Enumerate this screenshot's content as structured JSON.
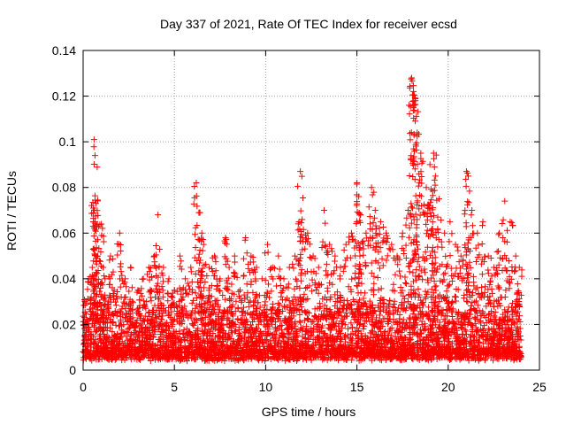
{
  "chart_data": {
    "type": "scatter",
    "title": "Day 337 of 2021, Rate Of TEC Index for receiver ecsd",
    "xlabel": "GPS time / hours",
    "ylabel": "ROTI / TECUs",
    "xlim": [
      0,
      25
    ],
    "ylim": [
      0,
      0.14
    ],
    "xticks": [
      0,
      5,
      10,
      15,
      20,
      25
    ],
    "xtick_labels": [
      "0",
      "5",
      "10",
      "15",
      "20",
      "25"
    ],
    "yticks": [
      0,
      0.02,
      0.04,
      0.06,
      0.08,
      0.1,
      0.12,
      0.14
    ],
    "ytick_labels": [
      "0",
      "0.02",
      "0.04",
      "0.06",
      "0.08",
      "0.1",
      "0.12",
      "0.14"
    ],
    "grid": true,
    "marker": "+",
    "marker_color": "#ff0000",
    "series": [
      {
        "x": [
          0.1,
          0.3,
          0.5,
          0.6,
          0.65,
          0.7,
          0.8,
          1.0,
          1.1,
          1.2,
          1.5,
          1.7,
          2.0,
          2.3,
          2.6,
          3.0,
          3.3,
          3.6,
          3.9,
          4.1,
          4.4,
          4.7,
          5.0,
          5.3,
          5.6,
          5.9,
          6.2,
          6.4,
          6.5,
          6.6,
          6.9,
          7.2,
          7.5,
          7.8,
          8.0,
          8.3,
          8.6,
          8.9,
          9.2,
          9.5,
          9.8,
          10.1,
          10.4,
          10.7,
          11.0,
          11.3,
          11.6,
          11.9,
          12.0,
          12.3,
          12.6,
          12.9,
          13.2,
          13.5,
          13.8,
          14.1,
          14.4,
          14.7,
          15.0,
          15.1,
          15.2,
          15.5,
          15.8,
          16.0,
          16.3,
          16.6,
          16.9,
          17.2,
          17.5,
          17.8,
          18.0,
          18.1,
          18.2,
          18.3,
          18.5,
          18.8,
          19.0,
          19.2,
          19.3,
          19.5,
          19.8,
          20.1,
          20.4,
          20.7,
          21.0,
          21.1,
          21.3,
          21.6,
          21.9,
          22.2,
          22.5,
          22.8,
          23.1,
          23.4,
          23.7,
          23.9
        ],
        "y": [
          0.03,
          0.04,
          0.045,
          0.101,
          0.094,
          0.073,
          0.05,
          0.064,
          0.045,
          0.04,
          0.05,
          0.035,
          0.06,
          0.04,
          0.045,
          0.035,
          0.04,
          0.045,
          0.05,
          0.068,
          0.045,
          0.04,
          0.035,
          0.05,
          0.04,
          0.045,
          0.082,
          0.069,
          0.06,
          0.055,
          0.045,
          0.05,
          0.04,
          0.058,
          0.045,
          0.05,
          0.035,
          0.058,
          0.05,
          0.045,
          0.04,
          0.055,
          0.045,
          0.05,
          0.04,
          0.045,
          0.05,
          0.087,
          0.066,
          0.06,
          0.05,
          0.045,
          0.07,
          0.055,
          0.05,
          0.045,
          0.055,
          0.06,
          0.082,
          0.076,
          0.068,
          0.06,
          0.08,
          0.07,
          0.065,
          0.06,
          0.055,
          0.05,
          0.06,
          0.07,
          0.128,
          0.122,
          0.118,
          0.104,
          0.095,
          0.08,
          0.09,
          0.095,
          0.085,
          0.075,
          0.06,
          0.065,
          0.055,
          0.05,
          0.087,
          0.085,
          0.07,
          0.06,
          0.065,
          0.05,
          0.045,
          0.06,
          0.074,
          0.065,
          0.05,
          0.045
        ]
      }
    ],
    "baseline_band": {
      "x_range": [
        0,
        24
      ],
      "y_range": [
        0.004,
        0.025
      ]
    }
  }
}
